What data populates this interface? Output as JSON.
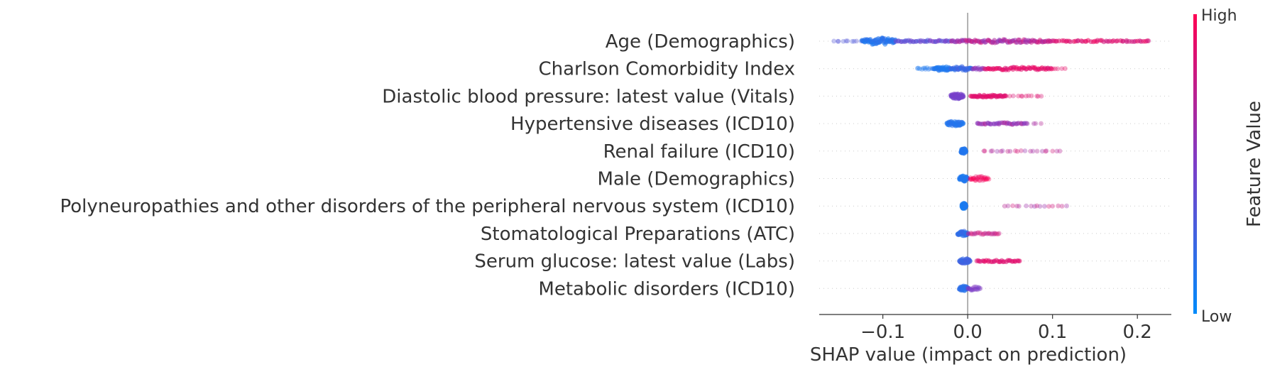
{
  "chart_data": {
    "type": "scatter",
    "subtype": "shap-beeswarm-summary",
    "xlabel": "SHAP value (impact on prediction)",
    "xlim": [
      -0.175,
      0.24
    ],
    "xticks": [
      -0.1,
      0.0,
      0.1,
      0.2
    ],
    "xtick_labels": [
      "−0.1",
      "0.0",
      "0.1",
      "0.2"
    ],
    "zero_line": 0.0,
    "colorbar": {
      "title": "Feature Value",
      "high_label": "High",
      "low_label": "Low",
      "low_color": "#008bfb",
      "high_color": "#ff0052"
    },
    "features": [
      {
        "name": "Age (Demographics)",
        "clusters": [
          {
            "x0": -0.16,
            "x1": -0.125,
            "c0": 0.3,
            "c1": 0.35,
            "w": 0.5,
            "n": 10
          },
          {
            "x0": -0.125,
            "x1": -0.085,
            "c0": 0.1,
            "c1": 0.2,
            "w": 5.0,
            "n": 70
          },
          {
            "x0": -0.085,
            "x1": -0.02,
            "c0": 0.3,
            "c1": 0.5,
            "w": 1.5,
            "n": 40
          },
          {
            "x0": -0.02,
            "x1": 0.1,
            "c0": 0.55,
            "c1": 0.85,
            "w": 2.5,
            "n": 90
          },
          {
            "x0": 0.1,
            "x1": 0.215,
            "c0": 0.8,
            "c1": 0.95,
            "w": 1.2,
            "n": 50
          }
        ]
      },
      {
        "name": "Charlson Comorbidity Index",
        "clusters": [
          {
            "x0": -0.06,
            "x1": -0.04,
            "c0": 0.1,
            "c1": 0.15,
            "w": 1.5,
            "n": 12
          },
          {
            "x0": -0.04,
            "x1": -0.02,
            "c0": 0.1,
            "c1": 0.15,
            "w": 3.2,
            "n": 35
          },
          {
            "x0": -0.02,
            "x1": 0.005,
            "c0": 0.15,
            "c1": 0.3,
            "w": 3.0,
            "n": 35
          },
          {
            "x0": 0.005,
            "x1": 0.02,
            "c0": 0.5,
            "c1": 0.7,
            "w": 1.8,
            "n": 18
          },
          {
            "x0": 0.02,
            "x1": 0.1,
            "c0": 0.85,
            "c1": 0.95,
            "w": 2.2,
            "n": 55
          },
          {
            "x0": 0.1,
            "x1": 0.115,
            "c0": 0.9,
            "c1": 0.95,
            "w": 0.4,
            "n": 5
          }
        ]
      },
      {
        "name": "Diastolic blood pressure: latest value (Vitals)",
        "clusters": [
          {
            "x0": -0.02,
            "x1": -0.005,
            "c0": 0.45,
            "c1": 0.5,
            "w": 3.8,
            "n": 45
          },
          {
            "x0": 0.003,
            "x1": 0.045,
            "c0": 0.85,
            "c1": 0.92,
            "w": 1.5,
            "n": 40
          },
          {
            "x0": 0.045,
            "x1": 0.09,
            "c0": 0.85,
            "c1": 0.9,
            "w": 0.5,
            "n": 12
          }
        ]
      },
      {
        "name": "Hypertensive diseases (ICD10)",
        "clusters": [
          {
            "x0": -0.025,
            "x1": -0.005,
            "c0": 0.12,
            "c1": 0.18,
            "w": 3.5,
            "n": 40
          },
          {
            "x0": 0.01,
            "x1": 0.07,
            "c0": 0.5,
            "c1": 0.7,
            "w": 1.3,
            "n": 35
          },
          {
            "x0": 0.07,
            "x1": 0.09,
            "c0": 0.6,
            "c1": 0.75,
            "w": 0.3,
            "n": 4
          }
        ]
      },
      {
        "name": "Renal failure (ICD10)",
        "clusters": [
          {
            "x0": -0.008,
            "x1": -0.002,
            "c0": 0.12,
            "c1": 0.15,
            "w": 4.0,
            "n": 40
          },
          {
            "x0": 0.015,
            "x1": 0.11,
            "c0": 0.6,
            "c1": 0.85,
            "w": 0.6,
            "n": 22
          }
        ]
      },
      {
        "name": "Male (Demographics)",
        "clusters": [
          {
            "x0": -0.01,
            "x1": 0.0,
            "c0": 0.1,
            "c1": 0.15,
            "w": 4.0,
            "n": 40
          },
          {
            "x0": 0.002,
            "x1": 0.025,
            "c0": 0.9,
            "c1": 1.0,
            "w": 3.0,
            "n": 30
          }
        ]
      },
      {
        "name": "Polyneuropathies and other disorders of the peripheral nervous system (ICD10)",
        "clusters": [
          {
            "x0": -0.007,
            "x1": -0.002,
            "c0": 0.08,
            "c1": 0.12,
            "w": 4.2,
            "n": 40
          },
          {
            "x0": 0.04,
            "x1": 0.12,
            "c0": 0.6,
            "c1": 0.85,
            "w": 0.5,
            "n": 16
          }
        ]
      },
      {
        "name": "Stomatological Preparations (ATC)",
        "clusters": [
          {
            "x0": -0.012,
            "x1": 0.0,
            "c0": 0.12,
            "c1": 0.25,
            "w": 3.6,
            "n": 40
          },
          {
            "x0": 0.0,
            "x1": 0.038,
            "c0": 0.7,
            "c1": 0.9,
            "w": 1.6,
            "n": 28
          }
        ]
      },
      {
        "name": "Serum glucose: latest value (Labs)",
        "clusters": [
          {
            "x0": -0.01,
            "x1": 0.003,
            "c0": 0.2,
            "c1": 0.3,
            "w": 3.8,
            "n": 40
          },
          {
            "x0": 0.01,
            "x1": 0.062,
            "c0": 0.85,
            "c1": 0.92,
            "w": 1.3,
            "n": 32
          }
        ]
      },
      {
        "name": "Metabolic disorders (ICD10)",
        "clusters": [
          {
            "x0": -0.01,
            "x1": 0.0,
            "c0": 0.15,
            "c1": 0.2,
            "w": 3.5,
            "n": 35
          },
          {
            "x0": 0.0,
            "x1": 0.015,
            "c0": 0.45,
            "c1": 0.55,
            "w": 2.8,
            "n": 22
          }
        ]
      }
    ]
  }
}
